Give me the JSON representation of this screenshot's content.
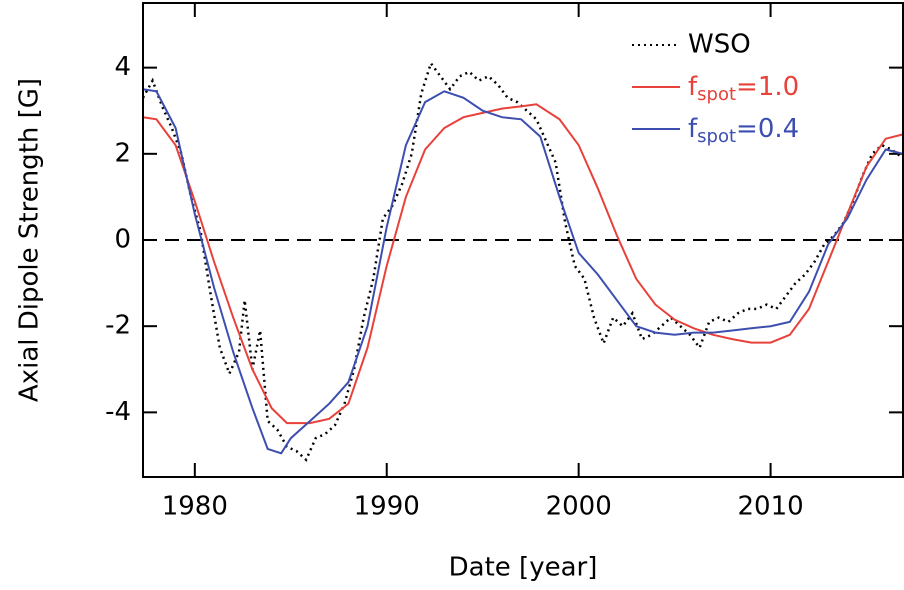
{
  "chart_data": {
    "type": "line",
    "xlabel": "Date [year]",
    "ylabel": "Axial Dipole Strength [G]",
    "xlim": [
      1977.3,
      2016.9
    ],
    "xticks": [
      1980,
      1990,
      2000,
      2010
    ],
    "ylim": [
      -5.5,
      5.5
    ],
    "yticks": [
      -4,
      -2,
      0,
      2,
      4
    ],
    "zero_line": true,
    "legend": "upper right",
    "series": [
      {
        "name": "WSO",
        "color": "#000000",
        "style": "dotted",
        "x": [
          1977.3,
          1977.8,
          1978.3,
          1978.8,
          1979.3,
          1979.8,
          1980.3,
          1980.8,
          1981.3,
          1981.8,
          1982.3,
          1982.6,
          1983,
          1983.4,
          1983.8,
          1984.3,
          1984.8,
          1985.3,
          1985.8,
          1986.3,
          1986.8,
          1987.3,
          1987.8,
          1988.3,
          1988.8,
          1989.3,
          1989.8,
          1990.3,
          1990.8,
          1991.3,
          1991.8,
          1992.3,
          1992.8,
          1993.3,
          1993.8,
          1994.3,
          1994.8,
          1995.3,
          1995.8,
          1996.3,
          1996.8,
          1997.3,
          1997.8,
          1998.3,
          1998.8,
          1999.3,
          1999.8,
          2000.3,
          2000.8,
          2001.3,
          2001.8,
          2002.3,
          2002.8,
          2003.3,
          2003.8,
          2004.3,
          2004.8,
          2005.3,
          2005.8,
          2006.3,
          2006.8,
          2007.3,
          2007.8,
          2008.3,
          2008.8,
          2009.3,
          2009.8,
          2010.3,
          2010.8,
          2011.3,
          2011.8,
          2012.3,
          2012.8,
          2013.3,
          2013.8,
          2014.3,
          2014.8,
          2015.3,
          2015.8,
          2016.3,
          2016.9
        ],
        "values": [
          3.3,
          3.7,
          3.1,
          2.6,
          2.0,
          1.0,
          0.2,
          -1.2,
          -2.5,
          -3.1,
          -2.6,
          -1.4,
          -3.0,
          -2.1,
          -4.2,
          -4.4,
          -4.8,
          -4.9,
          -5.1,
          -4.6,
          -4.5,
          -4.3,
          -3.8,
          -3.0,
          -1.8,
          -0.9,
          0.5,
          0.8,
          1.3,
          2.0,
          3.4,
          4.1,
          3.8,
          3.5,
          3.8,
          3.9,
          3.7,
          3.8,
          3.6,
          3.3,
          3.2,
          3.0,
          2.8,
          2.3,
          1.8,
          0.4,
          -0.6,
          -0.9,
          -1.8,
          -2.4,
          -1.8,
          -2.0,
          -1.7,
          -2.3,
          -2.2,
          -2.0,
          -1.8,
          -2.0,
          -2.2,
          -2.5,
          -1.9,
          -1.8,
          -1.9,
          -1.7,
          -1.6,
          -1.6,
          -1.5,
          -1.6,
          -1.3,
          -1.0,
          -0.8,
          -0.5,
          -0.1,
          0.1,
          0.4,
          0.9,
          1.5,
          2.0,
          2.2,
          2.1,
          1.9
        ]
      },
      {
        "name": "fspot=1.0",
        "color": "#e8413a",
        "style": "solid",
        "x": [
          1977.3,
          1978,
          1979,
          1980,
          1981,
          1982,
          1983,
          1984,
          1984.8,
          1986,
          1987,
          1988,
          1989,
          1990,
          1991,
          1992,
          1993,
          1994,
          1995,
          1996,
          1997,
          1997.8,
          1999,
          2000,
          2001,
          2002,
          2003,
          2004,
          2005,
          2006,
          2007,
          2008,
          2009,
          2010,
          2011,
          2012,
          2013,
          2014,
          2015,
          2016,
          2016.9
        ],
        "values": [
          2.85,
          2.8,
          2.2,
          0.9,
          -0.5,
          -1.8,
          -3.0,
          -3.9,
          -4.25,
          -4.25,
          -4.15,
          -3.8,
          -2.5,
          -0.6,
          1.0,
          2.1,
          2.6,
          2.85,
          2.95,
          3.05,
          3.1,
          3.15,
          2.8,
          2.2,
          1.2,
          0.1,
          -0.9,
          -1.5,
          -1.85,
          -2.05,
          -2.2,
          -2.3,
          -2.38,
          -2.38,
          -2.2,
          -1.6,
          -0.5,
          0.6,
          1.7,
          2.35,
          2.45
        ]
      },
      {
        "name": "fspot=0.4",
        "color": "#3c4fb0",
        "style": "solid",
        "x": [
          1977.3,
          1978,
          1979,
          1980,
          1981,
          1982,
          1983,
          1983.8,
          1984.5,
          1985,
          1986,
          1987,
          1988,
          1989,
          1990,
          1991,
          1992,
          1993,
          1994,
          1995,
          1996,
          1997,
          1998,
          1999,
          2000,
          2001,
          2002,
          2003,
          2004,
          2005,
          2006,
          2007,
          2008,
          2009,
          2010,
          2011,
          2012,
          2013,
          2014,
          2015,
          2016,
          2016.9
        ],
        "values": [
          3.5,
          3.45,
          2.6,
          0.6,
          -1.1,
          -2.6,
          -3.9,
          -4.85,
          -4.95,
          -4.6,
          -4.2,
          -3.8,
          -3.3,
          -2.0,
          0.3,
          2.2,
          3.2,
          3.45,
          3.3,
          3.0,
          2.85,
          2.8,
          2.4,
          1.0,
          -0.3,
          -0.8,
          -1.4,
          -2.0,
          -2.15,
          -2.2,
          -2.15,
          -2.15,
          -2.1,
          -2.05,
          -2.0,
          -1.9,
          -1.2,
          -0.1,
          0.5,
          1.4,
          2.1,
          2.0
        ]
      }
    ]
  }
}
